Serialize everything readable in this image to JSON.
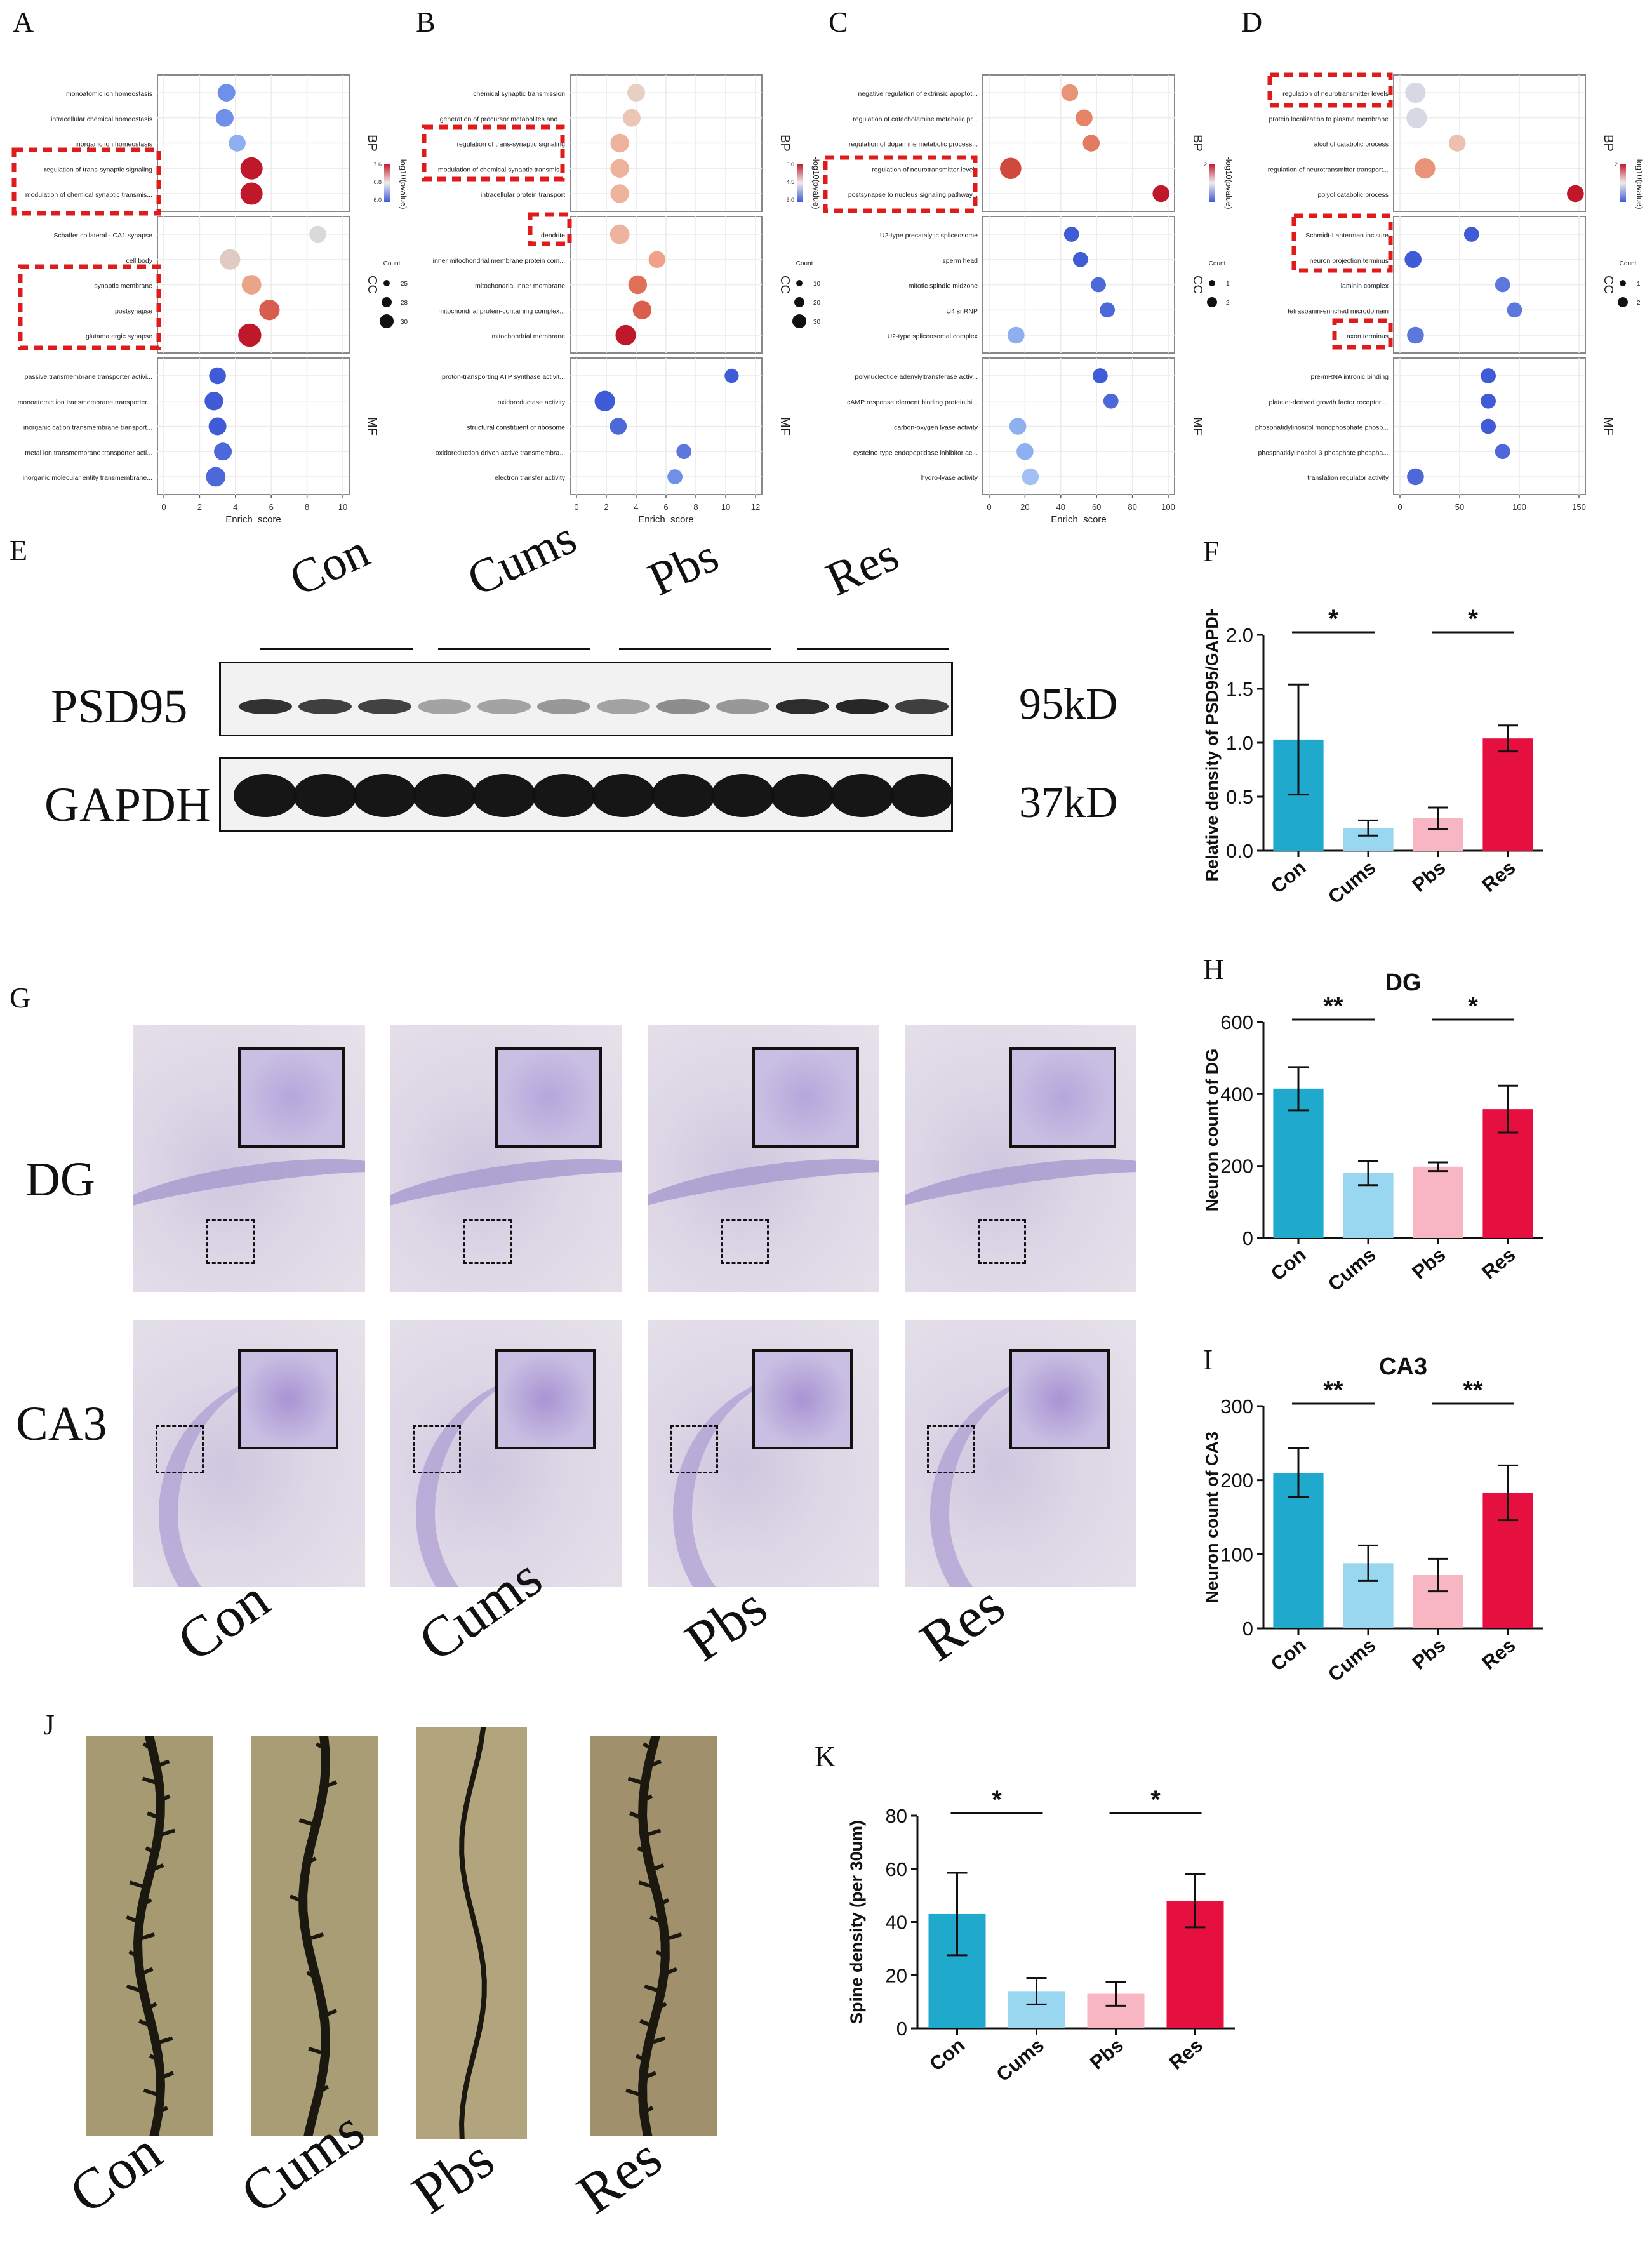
{
  "panel_letters": {
    "A": "A",
    "B": "B",
    "C": "C",
    "D": "D",
    "E": "E",
    "F": "F",
    "G": "G",
    "H": "H",
    "I": "I",
    "J": "J",
    "K": "K"
  },
  "colors": {
    "con": "#1fa9cc",
    "cums": "#98d7ef",
    "pbs": "#f7b6c1",
    "res": "#e5103f",
    "dot_high": "#c0182b",
    "dot_mid": "#e8a48c",
    "dot_low": "#dad8d8",
    "dot_blue": "#3f5bd6"
  },
  "enrichment": [
    {
      "id": "A",
      "xlabel": "Enrich_score",
      "xmax": 10,
      "xticks": [
        0,
        2,
        4,
        6,
        8,
        10
      ],
      "color_title": "-log10(pvalue)",
      "color_ticks": [
        "7.6",
        "6.8",
        "6.0"
      ],
      "size_title": "Count",
      "size_ticks": [
        "25",
        "28",
        "30"
      ],
      "groups": [
        {
          "name": "BP",
          "terms": [
            {
              "label": "monoatomic ion homeostasis",
              "x": 3.5,
              "s": 1,
              "c": "#6f90e8"
            },
            {
              "label": "intracellular chemical homeostasis",
              "x": 3.4,
              "s": 1,
              "c": "#6f90e8"
            },
            {
              "label": "inorganic ion homeostasis",
              "x": 4.1,
              "s": 0.9,
              "c": "#8fb0f0"
            },
            {
              "label": "regulation of trans-synaptic signaling",
              "x": 4.9,
              "s": 1.5,
              "c": "#c0182b"
            },
            {
              "label": "modulation of chemical synaptic transmis...",
              "x": 4.9,
              "s": 1.5,
              "c": "#c0182b"
            }
          ]
        },
        {
          "name": "CC",
          "terms": [
            {
              "label": "Schaffer collateral - CA1 synapse",
              "x": 8.6,
              "s": 0.9,
              "c": "#dad8d8"
            },
            {
              "label": "cell body",
              "x": 3.7,
              "s": 1.3,
              "c": "#e0cbc4"
            },
            {
              "label": "synaptic membrane",
              "x": 4.9,
              "s": 1.2,
              "c": "#eaa488"
            },
            {
              "label": "postsynapse",
              "x": 5.9,
              "s": 1.3,
              "c": "#d95d4e"
            },
            {
              "label": "glutamatergic synapse",
              "x": 4.8,
              "s": 1.6,
              "c": "#c0182b"
            }
          ]
        },
        {
          "name": "MF",
          "terms": [
            {
              "label": "passive transmembrane transporter activi...",
              "x": 3.0,
              "s": 0.9,
              "c": "#3f5bd6"
            },
            {
              "label": "monoatomic ion transmembrane transporter...",
              "x": 2.8,
              "s": 1.1,
              "c": "#3f5bd6"
            },
            {
              "label": "inorganic cation transmembrane transport...",
              "x": 3.0,
              "s": 1.0,
              "c": "#3f5bd6"
            },
            {
              "label": "metal ion transmembrane transporter acti...",
              "x": 3.3,
              "s": 1.0,
              "c": "#4c68d9"
            },
            {
              "label": "inorganic molecular entity transmembrane...",
              "x": 2.9,
              "s": 1.2,
              "c": "#4c68d9"
            }
          ]
        }
      ]
    },
    {
      "id": "B",
      "xlabel": "Enrich_score",
      "xmax": 12,
      "xticks": [
        0,
        2,
        4,
        6,
        8,
        10,
        12
      ],
      "color_title": "-log10(pvalue)",
      "color_ticks": [
        "6.0",
        "4.5",
        "3.0"
      ],
      "size_title": "Count",
      "size_ticks": [
        "10",
        "20",
        "30"
      ],
      "groups": [
        {
          "name": "BP",
          "terms": [
            {
              "label": "chemical synaptic transmission",
              "x": 4.0,
              "s": 1.0,
              "c": "#e8cfc4"
            },
            {
              "label": "generation of precursor metabolites and ...",
              "x": 3.7,
              "s": 1.0,
              "c": "#ebc5b5"
            },
            {
              "label": "regulation of trans-synaptic signaling",
              "x": 2.9,
              "s": 1.1,
              "c": "#eeb39d"
            },
            {
              "label": "modulation of chemical synaptic transmis...",
              "x": 2.9,
              "s": 1.1,
              "c": "#eeb39d"
            },
            {
              "label": "intracellular protein transport",
              "x": 2.9,
              "s": 1.1,
              "c": "#eeb39d"
            }
          ]
        },
        {
          "name": "CC",
          "terms": [
            {
              "label": "dendrite",
              "x": 2.9,
              "s": 1.2,
              "c": "#eeb39d"
            },
            {
              "label": "inner mitochondrial membrane protein com...",
              "x": 5.4,
              "s": 0.9,
              "c": "#f0a288"
            },
            {
              "label": "mitochondrial inner membrane",
              "x": 4.1,
              "s": 1.1,
              "c": "#e07058"
            },
            {
              "label": "mitochondrial protein-containing complex...",
              "x": 4.4,
              "s": 1.1,
              "c": "#da5e4c"
            },
            {
              "label": "mitochondrial membrane",
              "x": 3.3,
              "s": 1.3,
              "c": "#c0182b"
            }
          ]
        },
        {
          "name": "MF",
          "terms": [
            {
              "label": "proton-transporting ATP synthase activit...",
              "x": 10.4,
              "s": 0.6,
              "c": "#3f5bd6"
            },
            {
              "label": "oxidoreductase activity",
              "x": 1.9,
              "s": 1.3,
              "c": "#3f5bd6"
            },
            {
              "label": "structural constituent of ribosome",
              "x": 2.8,
              "s": 0.9,
              "c": "#4c68d9"
            },
            {
              "label": "oxidoreduction-driven active transmembra...",
              "x": 7.2,
              "s": 0.7,
              "c": "#5d78dd"
            },
            {
              "label": "electron transfer activity",
              "x": 6.6,
              "s": 0.7,
              "c": "#7090e8"
            }
          ]
        }
      ]
    },
    {
      "id": "C",
      "xlabel": "Enrich_score",
      "xmax": 100,
      "xticks": [
        0,
        20,
        40,
        60,
        80,
        100
      ],
      "color_title": "-log10(pvalue)",
      "color_ticks": [
        "2",
        "",
        ""
      ],
      "size_title": "Count",
      "size_ticks": [
        "1",
        "2"
      ],
      "groups": [
        {
          "name": "BP",
          "terms": [
            {
              "label": "negative regulation of extrinsic apoptot...",
              "x": 45,
              "s": 0.9,
              "c": "#e89478"
            },
            {
              "label": "regulation of catecholamine metabolic pr...",
              "x": 53,
              "s": 0.9,
              "c": "#e68468"
            },
            {
              "label": "regulation of dopamine metabolic process...",
              "x": 57,
              "s": 0.9,
              "c": "#e27c60"
            },
            {
              "label": "regulation of neurotransmitter levels",
              "x": 12,
              "s": 1.4,
              "c": "#d04a3c"
            },
            {
              "label": "postsynapse to nucleus signaling pathway...",
              "x": 96,
              "s": 0.9,
              "c": "#c0182b"
            }
          ]
        },
        {
          "name": "CC",
          "terms": [
            {
              "label": "U2-type precatalytic spliceosome",
              "x": 46,
              "s": 0.7,
              "c": "#3f5bd6"
            },
            {
              "label": "sperm head",
              "x": 51,
              "s": 0.7,
              "c": "#3f5bd6"
            },
            {
              "label": "mitotic spindle midzone",
              "x": 61,
              "s": 0.7,
              "c": "#4c68d9"
            },
            {
              "label": "U4 snRNP",
              "x": 66,
              "s": 0.7,
              "c": "#4c68d9"
            },
            {
              "label": "U2-type spliceosomal complex",
              "x": 15,
              "s": 0.9,
              "c": "#8fb0f0"
            }
          ]
        },
        {
          "name": "MF",
          "terms": [
            {
              "label": "polynucleotide adenylyltransferase activ...",
              "x": 62,
              "s": 0.7,
              "c": "#3f5bd6"
            },
            {
              "label": "cAMP response element binding protein bi...",
              "x": 68,
              "s": 0.7,
              "c": "#4c68d9"
            },
            {
              "label": "carbon-oxygen lyase activity",
              "x": 16,
              "s": 0.9,
              "c": "#8fb0f0"
            },
            {
              "label": "cysteine-type endopeptidase inhibitor ac...",
              "x": 20,
              "s": 0.9,
              "c": "#8fb0f0"
            },
            {
              "label": "hydro-lyase activity",
              "x": 23,
              "s": 0.9,
              "c": "#a2c0f3"
            }
          ]
        }
      ]
    },
    {
      "id": "D",
      "xlabel": "",
      "xmax": 150,
      "xticks": [
        0,
        50,
        100,
        150
      ],
      "color_title": "-log10(pvalue)",
      "color_ticks": [
        "2",
        "",
        ""
      ],
      "size_title": "Count",
      "size_ticks": [
        "1",
        "2"
      ],
      "groups": [
        {
          "name": "BP",
          "terms": [
            {
              "label": "regulation of neurotransmitter levels",
              "x": 13,
              "s": 1.3,
              "c": "#d6d8e3"
            },
            {
              "label": "protein localization to plasma membrane",
              "x": 14,
              "s": 1.3,
              "c": "#d6d8e3"
            },
            {
              "label": "alcohol catabolic process",
              "x": 48,
              "s": 0.9,
              "c": "#ecc0b0"
            },
            {
              "label": "regulation of neurotransmitter transport...",
              "x": 21,
              "s": 1.3,
              "c": "#e89478"
            },
            {
              "label": "polyol catabolic process",
              "x": 147,
              "s": 0.9,
              "c": "#c0182b"
            }
          ]
        },
        {
          "name": "CC",
          "terms": [
            {
              "label": "Schmidt-Lanterman incisure",
              "x": 60,
              "s": 0.7,
              "c": "#3f5bd6"
            },
            {
              "label": "neuron projection terminus",
              "x": 11,
              "s": 0.9,
              "c": "#3f5bd6"
            },
            {
              "label": "laminin complex",
              "x": 86,
              "s": 0.7,
              "c": "#5d78dd"
            },
            {
              "label": "tetraspanin-enriched microdomain",
              "x": 96,
              "s": 0.7,
              "c": "#5d78dd"
            },
            {
              "label": "axon terminus",
              "x": 13,
              "s": 0.9,
              "c": "#5d78dd"
            }
          ]
        },
        {
          "name": "MF",
          "terms": [
            {
              "label": "pre-mRNA intronic binding",
              "x": 74,
              "s": 0.7,
              "c": "#3f5bd6"
            },
            {
              "label": "platelet-derived growth factor receptor ...",
              "x": 74,
              "s": 0.7,
              "c": "#3f5bd6"
            },
            {
              "label": "phosphatidylinositol monophosphate phosp...",
              "x": 74,
              "s": 0.7,
              "c": "#3f5bd6"
            },
            {
              "label": "phosphatidylinositol-3-phosphate phospha...",
              "x": 86,
              "s": 0.7,
              "c": "#4c68d9"
            },
            {
              "label": "translation regulator activity",
              "x": 13,
              "s": 0.9,
              "c": "#4c68d9"
            }
          ]
        }
      ]
    }
  ],
  "western": {
    "groups": [
      "Con",
      "Cums",
      "Pbs",
      "Res"
    ],
    "rows": [
      {
        "name": "PSD95",
        "kd": "95kD"
      },
      {
        "name": "GAPDH",
        "kd": "37kD"
      }
    ]
  },
  "histology": {
    "rows": [
      "DG",
      "CA3"
    ],
    "cols": [
      "Con",
      "Cums",
      "Pbs",
      "Res"
    ]
  },
  "spine_images": {
    "cols": [
      "Con",
      "Cums",
      "Pbs",
      "Res"
    ]
  },
  "chart_data": [
    {
      "id": "F",
      "type": "bar",
      "title": "",
      "categories": [
        "Con",
        "Cums",
        "Pbs",
        "Res"
      ],
      "values": [
        1.03,
        0.21,
        0.3,
        1.04
      ],
      "errors": [
        0.51,
        0.07,
        0.1,
        0.12
      ],
      "ylabel": "Relative density of PSD95/GAPDH",
      "ylim": [
        0,
        2.0
      ],
      "yticks": [
        "0.0",
        "0.5",
        "1.0",
        "1.5",
        "2.0"
      ],
      "ytick_values": [
        0,
        0.5,
        1.0,
        1.5,
        2.0
      ],
      "significance": [
        {
          "from": 0,
          "to": 1,
          "label": "*"
        },
        {
          "from": 2,
          "to": 3,
          "label": "*"
        }
      ]
    },
    {
      "id": "H",
      "type": "bar",
      "title": "DG",
      "categories": [
        "Con",
        "Cums",
        "Pbs",
        "Res"
      ],
      "values": [
        415,
        180,
        198,
        358
      ],
      "errors": [
        60,
        33,
        12,
        65
      ],
      "ylabel": "Neuron count of DG",
      "ylim": [
        0,
        600
      ],
      "yticks": [
        "0",
        "200",
        "400",
        "600"
      ],
      "ytick_values": [
        0,
        200,
        400,
        600
      ],
      "significance": [
        {
          "from": 0,
          "to": 1,
          "label": "**"
        },
        {
          "from": 2,
          "to": 3,
          "label": "*"
        }
      ]
    },
    {
      "id": "I",
      "type": "bar",
      "title": "CA3",
      "categories": [
        "Con",
        "Cums",
        "Pbs",
        "Res"
      ],
      "values": [
        210,
        88,
        72,
        183
      ],
      "errors": [
        33,
        24,
        22,
        37
      ],
      "ylabel": "Neuron count of CA3",
      "ylim": [
        0,
        300
      ],
      "yticks": [
        "0",
        "100",
        "200",
        "300"
      ],
      "ytick_values": [
        0,
        100,
        200,
        300
      ],
      "significance": [
        {
          "from": 0,
          "to": 1,
          "label": "**"
        },
        {
          "from": 2,
          "to": 3,
          "label": "**"
        }
      ]
    },
    {
      "id": "K",
      "type": "bar",
      "title": "",
      "categories": [
        "Con",
        "Cums",
        "Pbs",
        "Res"
      ],
      "values": [
        43,
        14,
        13,
        48
      ],
      "errors": [
        15.5,
        5,
        4.5,
        10
      ],
      "ylabel": "Spine density (per 30um)",
      "ylim": [
        0,
        80
      ],
      "yticks": [
        "0",
        "20",
        "40",
        "60",
        "80"
      ],
      "ytick_values": [
        0,
        20,
        40,
        60,
        80
      ],
      "significance": [
        {
          "from": 0,
          "to": 1,
          "label": "*"
        },
        {
          "from": 2,
          "to": 3,
          "label": "*"
        }
      ]
    }
  ]
}
